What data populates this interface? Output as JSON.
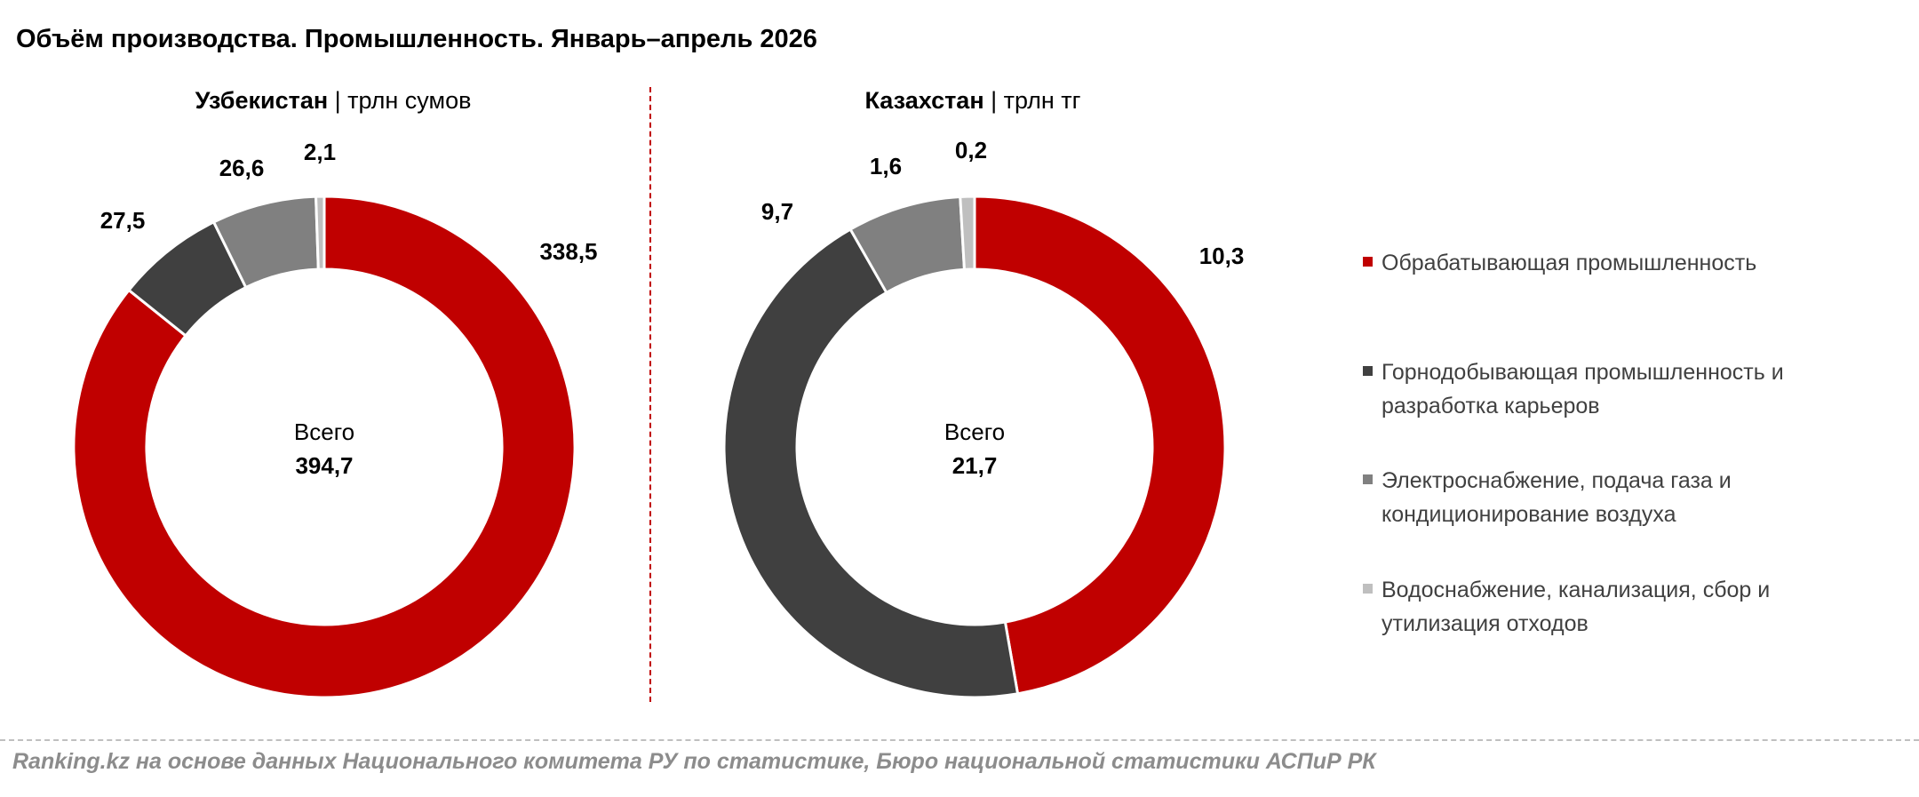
{
  "title": "Объём производства. Промышленность. Январь–апрель 2026",
  "source": "Ranking.kz на основе данных Национального комитета РУ по статистике, Бюро национальной статистики АСПиР РК",
  "legend": [
    {
      "label_line1": "Обрабатывающая промышленность",
      "label_line2": "",
      "color": "#c00000"
    },
    {
      "label_line1": "Горнодобывающая промышленность и",
      "label_line2": "разработка карьеров",
      "color": "#404040"
    },
    {
      "label_line1": "Электроснабжение, подача газа и",
      "label_line2": "кондиционирование воздуха",
      "color": "#808080"
    },
    {
      "label_line1": "Водоснабжение, канализация, сбор и",
      "label_line2": "утилизация отходов",
      "color": "#bfbfbf"
    }
  ],
  "chart_data": [
    {
      "type": "pie",
      "country": "Узбекистан",
      "unit": "трлн сумов",
      "center_label": "Всего",
      "total": "394,7",
      "values": [
        338.5,
        27.5,
        26.6,
        2.1
      ],
      "value_labels": [
        "338,5",
        "27,5",
        "26,6",
        "2,1"
      ],
      "colors": [
        "#c00000",
        "#404040",
        "#808080",
        "#bfbfbf"
      ]
    },
    {
      "type": "pie",
      "country": "Казахстан",
      "unit": "трлн тг",
      "center_label": "Всего",
      "total": "21,7",
      "values": [
        10.3,
        9.7,
        1.6,
        0.2
      ],
      "value_labels": [
        "10,3",
        "9,7",
        "1,6",
        "0,2"
      ],
      "colors": [
        "#c00000",
        "#404040",
        "#808080",
        "#bfbfbf"
      ]
    }
  ]
}
